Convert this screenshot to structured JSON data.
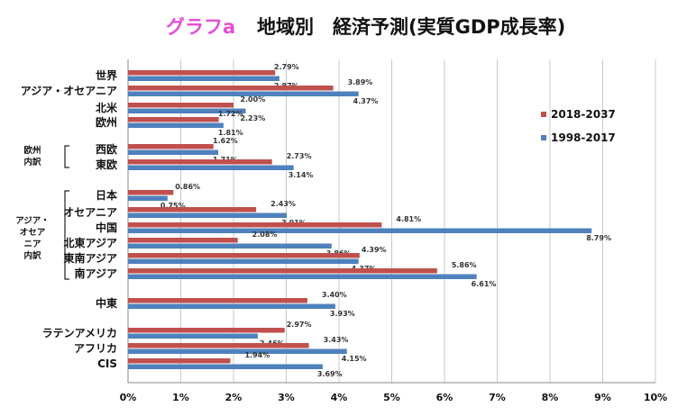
{
  "title": {
    "tag": "グラフa",
    "main": "地域別　経済予測(実質GDP成長率)"
  },
  "colors": {
    "series_a": "#c0504d",
    "series_b": "#4f81bd",
    "grid": "#c8c8c8"
  },
  "groups": [
    {
      "id": "europe-inner",
      "lines": [
        "欧州",
        "内訳"
      ]
    },
    {
      "id": "asia-inner",
      "lines": [
        "アジア・",
        "オセア",
        "ニア",
        "内訳"
      ]
    }
  ],
  "chart_data": {
    "type": "bar",
    "orientation": "horizontal",
    "categories": [
      "世界",
      "アジア・オセアニア",
      "北米",
      "欧州",
      "西欧",
      "東欧",
      "日本",
      "オセアニア",
      "中国",
      "北東アジア",
      "東南アジア",
      "南アジア",
      "中東",
      "ラテンアメリカ",
      "アフリカ",
      "CIS"
    ],
    "series": [
      {
        "name": "2018-2037",
        "values": [
          2.79,
          3.89,
          2.0,
          1.72,
          1.62,
          2.73,
          0.86,
          2.43,
          4.81,
          2.08,
          4.39,
          5.86,
          3.4,
          2.97,
          3.43,
          1.94
        ]
      },
      {
        "name": "1998-2017",
        "values": [
          2.87,
          4.37,
          2.23,
          1.81,
          1.71,
          3.14,
          0.75,
          3.01,
          8.79,
          3.86,
          4.37,
          6.61,
          3.93,
          2.46,
          4.15,
          3.69
        ]
      }
    ],
    "labels_a": [
      "2.79%",
      "3.89%",
      "2.00%",
      "1.72%",
      "1.62%",
      "2.73%",
      "0.86%",
      "2.43%",
      "4.81%",
      "2.08%",
      "4.39%",
      "5.86%",
      "3.40%",
      "2.97%",
      "3.43%",
      "1.94%"
    ],
    "labels_b": [
      "2.87%",
      "4.37%",
      "2.23%",
      "1.81%",
      "1.71%",
      "3.14%",
      "0.75%",
      "3.01%",
      "8.79%",
      "3.86%",
      "4.37%",
      "6.61%",
      "3.93%",
      "2.46%",
      "4.15%",
      "3.69%"
    ],
    "x_ticks": [
      "0%",
      "1%",
      "2%",
      "3%",
      "4%",
      "5%",
      "6%",
      "7%",
      "8%",
      "9%",
      "10%"
    ],
    "xlim": [
      0,
      10
    ],
    "grid": true,
    "legend_position": "right"
  }
}
